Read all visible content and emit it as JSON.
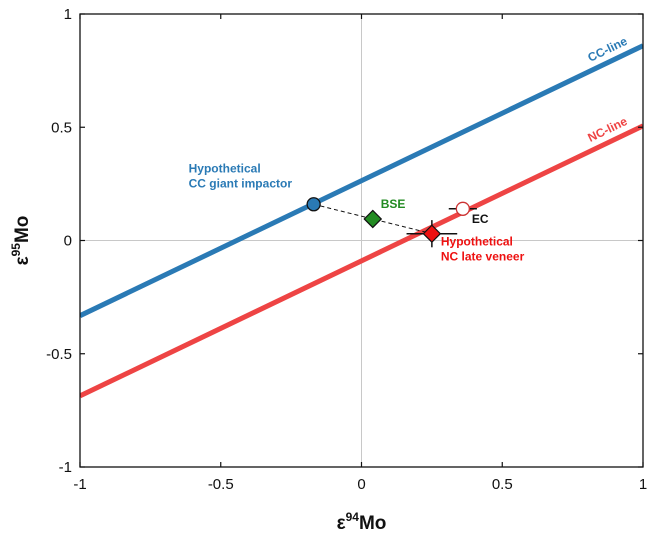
{
  "chart_data": {
    "type": "scatter",
    "title": "",
    "xlabel": {
      "symbol": "ε",
      "sup": "94",
      "text": "Mo"
    },
    "ylabel": {
      "symbol": "ε",
      "sup": "95",
      "text": "Mo"
    },
    "xlim": [
      -1,
      1
    ],
    "ylim": [
      -1,
      1
    ],
    "xticks": [
      -1,
      -0.5,
      0,
      0.5,
      1
    ],
    "yticks": [
      -1,
      -0.5,
      0,
      0.5,
      1
    ],
    "xtick_labels": [
      "-1",
      "-0.5",
      "0",
      "0.5",
      "1"
    ],
    "ytick_labels": [
      "-1",
      "-0.5",
      "0",
      "0.5",
      "1"
    ],
    "zero_lines": true,
    "lines": [
      {
        "name": "CC-line",
        "color": "#2a7ab5",
        "slope": 0.596,
        "intercept": 0.264,
        "label_at_x": 0.88
      },
      {
        "name": "NC-line",
        "color": "#ee4444",
        "slope": 0.596,
        "intercept": -0.09,
        "label_at_x": 0.88
      }
    ],
    "points": [
      {
        "name": "Hypothetical CC giant impactor",
        "label_lines": [
          "Hypothetical",
          "CC giant impactor"
        ],
        "x": -0.17,
        "y": 0.16,
        "marker": "circle",
        "fill": "#2a7ab5",
        "label_color": "#2a7ab5"
      },
      {
        "name": "BSE",
        "label_lines": [
          "BSE"
        ],
        "x": 0.04,
        "y": 0.095,
        "marker": "diamond",
        "fill": "#228b22",
        "label_color": "#228b22"
      },
      {
        "name": "Hypothetical NC late veneer",
        "label_lines": [
          "Hypothetical",
          "NC late veneer"
        ],
        "x": 0.25,
        "y": 0.03,
        "marker": "diamond",
        "fill": "#ee1111",
        "label_color": "#ee1111",
        "xerr": 0.09,
        "yerr": 0.06
      },
      {
        "name": "EC",
        "label_lines": [
          "EC"
        ],
        "x": 0.36,
        "y": 0.14,
        "marker": "circle",
        "fill": "#ffffff",
        "edge": "#cc3333",
        "label_color": "#111111",
        "xerr": 0.05
      }
    ],
    "mixing_line": {
      "from": [
        -0.17,
        0.16
      ],
      "to": [
        0.25,
        0.03
      ],
      "style": "dashed",
      "color": "#111111"
    }
  }
}
